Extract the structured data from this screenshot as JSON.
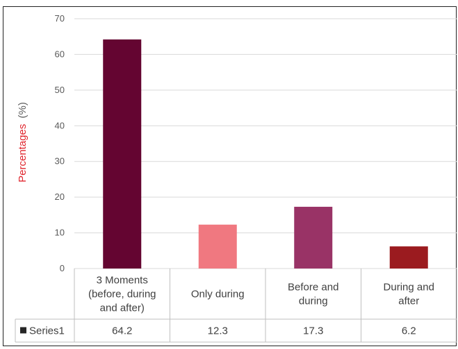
{
  "chart_data": {
    "type": "bar",
    "ylabel": "Percentages",
    "ylabel_unit": "(%)",
    "ylim": [
      0,
      70
    ],
    "yticks": [
      0,
      10,
      20,
      30,
      40,
      50,
      60,
      70
    ],
    "grid": true,
    "categories": [
      [
        "3 Moments",
        "(before, during",
        "and after)"
      ],
      [
        "Only during"
      ],
      [
        "Before and",
        "during"
      ],
      [
        "During and",
        "after"
      ]
    ],
    "series": [
      {
        "name": "Series1",
        "values": [
          64.2,
          12.3,
          17.3,
          6.2
        ],
        "value_labels": [
          "64.2",
          "12.3",
          "17.3",
          "6.2"
        ]
      }
    ],
    "bar_colors": [
      "#640531",
      "#f07880",
      "#993366",
      "#9b1b1f"
    ],
    "legend_marker_color": "#262626",
    "ylabel_color": "#e0262e",
    "data_table": true
  }
}
